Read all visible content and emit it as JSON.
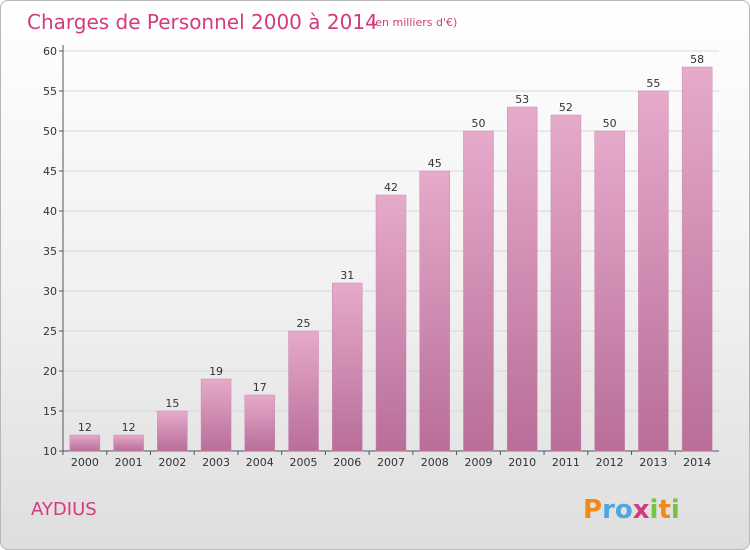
{
  "title": "Charges de Personnel 2000 à 2014",
  "subtitle": "(en milliers d'€)",
  "place": "AYDIUS",
  "brand": {
    "letters": [
      "P",
      "r",
      "o",
      "x",
      "i",
      "t",
      "i"
    ],
    "colors": [
      "#f08a1c",
      "#49a8dd",
      "#49a8dd",
      "#d53a80",
      "#7cc142",
      "#f08a1c",
      "#7cc142"
    ]
  },
  "colors": {
    "accent": "#d43a7c",
    "bar_top": "#e6aacb",
    "bar_bottom": "#b86e98"
  },
  "chart_data": {
    "type": "bar",
    "title": "Charges de Personnel 2000 à 2014",
    "subtitle": "(en milliers d'€)",
    "xlabel": "",
    "ylabel": "",
    "categories": [
      "2000",
      "2001",
      "2002",
      "2003",
      "2004",
      "2005",
      "2006",
      "2007",
      "2008",
      "2009",
      "2010",
      "2011",
      "2012",
      "2013",
      "2014"
    ],
    "values": [
      12,
      12,
      15,
      19,
      17,
      25,
      31,
      42,
      45,
      50,
      53,
      52,
      50,
      55,
      58
    ],
    "ylim": [
      10,
      60
    ],
    "yticks": [
      10,
      15,
      20,
      25,
      30,
      35,
      40,
      45,
      50,
      55,
      60
    ],
    "grid": true
  }
}
